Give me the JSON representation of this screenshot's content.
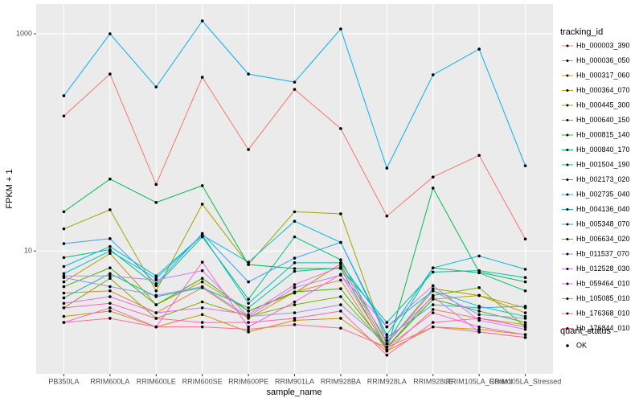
{
  "chart_data": {
    "type": "line",
    "x_label": "sample_name",
    "y_label": "FPKM + 1",
    "log_scale": true,
    "grid": true,
    "legend_title": "tracking_id",
    "status_legend_title": "quant_status",
    "status_values": [
      "OK"
    ],
    "ylim": [
      0.74,
      1880
    ],
    "yticks": [
      10,
      1000
    ],
    "categories": [
      "PB350LA",
      "RRIM600LA",
      "RRIM600LE",
      "RRIM600SE",
      "RRIM600PE",
      "RRIM901LA",
      "RRIM928BA",
      "RRIM928LA",
      "RRIM928LE",
      "RRIM105LA_Control",
      "RRIM105LA_Stressed"
    ],
    "series": [
      {
        "name": "Hb_000003_390",
        "color": "#F8766D",
        "values": [
          175,
          426,
          41,
          398,
          86,
          308,
          134,
          21,
          48,
          76,
          12.9
        ]
      },
      {
        "name": "Hb_000036_050",
        "color": "#EA8331",
        "values": [
          4.1,
          4.3,
          2.7,
          4.6,
          2.4,
          4.2,
          5.4,
          1.2,
          2.9,
          2.4,
          2.1
        ]
      },
      {
        "name": "Hb_000317_060",
        "color": "#D89000",
        "values": [
          2.5,
          2.8,
          2.0,
          2.6,
          1.8,
          2.3,
          2.4,
          1.2,
          2.0,
          1.9,
          1.7
        ]
      },
      {
        "name": "Hb_000364_070",
        "color": "#C09B00",
        "values": [
          5.2,
          9.5,
          3.2,
          5.2,
          2.8,
          4.1,
          7.6,
          1.3,
          3.6,
          3.9,
          2.7
        ]
      },
      {
        "name": "Hb_000445_300",
        "color": "#A3A500",
        "values": [
          16,
          24,
          4.3,
          27,
          7.5,
          23,
          22,
          1.4,
          4.5,
          3.9,
          3.0
        ]
      },
      {
        "name": "Hb_000640_150",
        "color": "#7CAE00",
        "values": [
          3.0,
          5.6,
          2.4,
          3.4,
          2.5,
          3.2,
          3.8,
          1.3,
          3.9,
          4.6,
          2.0
        ]
      },
      {
        "name": "Hb_000815_140",
        "color": "#39B600",
        "values": [
          4.7,
          7.0,
          3.2,
          5.6,
          2.8,
          4.2,
          4.5,
          1.3,
          3.6,
          2.8,
          2.2
        ]
      },
      {
        "name": "Hb_000840_170",
        "color": "#00BB4E",
        "values": [
          23,
          46,
          28,
          40,
          7.5,
          6.9,
          6.9,
          1.23,
          38,
          6.4,
          5.2
        ]
      },
      {
        "name": "Hb_001504_190",
        "color": "#00BF7D",
        "values": [
          8.7,
          10.3,
          4.8,
          13.5,
          3.6,
          13.5,
          8.3,
          1.4,
          7.0,
          6.3,
          4.3
        ]
      },
      {
        "name": "Hb_002173_020",
        "color": "#00C1A3",
        "values": [
          3.7,
          6.2,
          3.8,
          4.6,
          3.0,
          6.5,
          7.0,
          2.2,
          6.4,
          6.6,
          5.7
        ]
      },
      {
        "name": "Hb_002735_040",
        "color": "#00BFC4",
        "values": [
          6.2,
          10,
          5.6,
          14,
          3.3,
          7.8,
          7.8,
          2.0,
          4.3,
          3.1,
          2.5
        ]
      },
      {
        "name": "Hb_004136_040",
        "color": "#00BAE0",
        "values": [
          7.2,
          11,
          5.9,
          14,
          7.9,
          18.8,
          12,
          1.7,
          7.0,
          9.0,
          6.8
        ]
      },
      {
        "name": "Hb_005348_070",
        "color": "#00B0F6",
        "values": [
          269,
          1000,
          324,
          1314,
          426,
          359,
          1108,
          58,
          419,
          723,
          61
        ]
      },
      {
        "name": "Hb_006634_020",
        "color": "#35A2FF",
        "values": [
          11.7,
          13,
          5.0,
          14.5,
          5.2,
          8.6,
          12,
          1.6,
          3.2,
          3.0,
          3.1
        ]
      },
      {
        "name": "Hb_011537_070",
        "color": "#9590FF",
        "values": [
          5.7,
          4.7,
          3.9,
          4.7,
          2.5,
          2.7,
          3.2,
          1.4,
          4.3,
          2.6,
          2.4
        ]
      },
      {
        "name": "Hb_012528_030",
        "color": "#C77CFF",
        "values": [
          5.9,
          5.9,
          5.4,
          6.6,
          2.5,
          4.6,
          6.0,
          2.0,
          4.8,
          2.3,
          1.9
        ]
      },
      {
        "name": "Hb_059464_010",
        "color": "#E76BF3",
        "values": [
          3.3,
          3.8,
          2.7,
          3.0,
          2.6,
          4.9,
          7.2,
          1.5,
          3.8,
          1.8,
          1.6
        ]
      },
      {
        "name": "Hb_105085_010",
        "color": "#FA62DB",
        "values": [
          2.2,
          3.0,
          2.0,
          7.9,
          2.0,
          3.4,
          6.1,
          1.3,
          2.7,
          2.0,
          1.7
        ]
      },
      {
        "name": "Hb_176368_010",
        "color": "#FF62BC",
        "values": [
          3.0,
          3.3,
          2.4,
          2.2,
          2.2,
          2.4,
          2.8,
          1.1,
          2.2,
          2.4,
          2.0
        ]
      },
      {
        "name": "Hb_176844_010",
        "color": "#FF6C91",
        "values": [
          2.2,
          2.4,
          2.0,
          2.0,
          1.9,
          2.1,
          1.95,
          1.3,
          2.0,
          1.8,
          1.6
        ]
      }
    ]
  }
}
